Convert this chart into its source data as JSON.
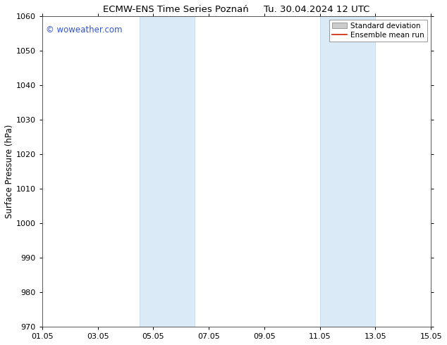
{
  "title": "ECMW-ENS Time Series Poznań     Tu. 30.04.2024 12 UTC",
  "ylabel": "Surface Pressure (hPa)",
  "ylim": [
    970,
    1060
  ],
  "yticks": [
    970,
    980,
    990,
    1000,
    1010,
    1020,
    1030,
    1040,
    1050,
    1060
  ],
  "xtick_labels": [
    "01.05",
    "03.05",
    "05.05",
    "07.05",
    "09.05",
    "11.05",
    "13.05",
    "15.05"
  ],
  "xtick_positions": [
    0,
    2,
    4,
    6,
    8,
    10,
    12,
    14
  ],
  "x_total_days": 14,
  "shaded_bands": [
    {
      "x_start": 3.5,
      "x_end": 5.5
    },
    {
      "x_start": 10.0,
      "x_end": 12.0
    }
  ],
  "shade_color": "#daeaf7",
  "shade_edge_color": "#b8d4ea",
  "watermark": "© woweather.com",
  "watermark_color": "#3355cc",
  "legend_items": [
    {
      "label": "Standard deviation",
      "type": "rect",
      "facecolor": "#cccccc",
      "edgecolor": "#999999"
    },
    {
      "label": "Ensemble mean run",
      "type": "line",
      "color": "#cc2200"
    }
  ],
  "background_color": "#ffffff",
  "title_fontsize": 9.5,
  "tick_fontsize": 8,
  "ylabel_fontsize": 8.5,
  "watermark_fontsize": 8.5,
  "legend_fontsize": 7.5
}
